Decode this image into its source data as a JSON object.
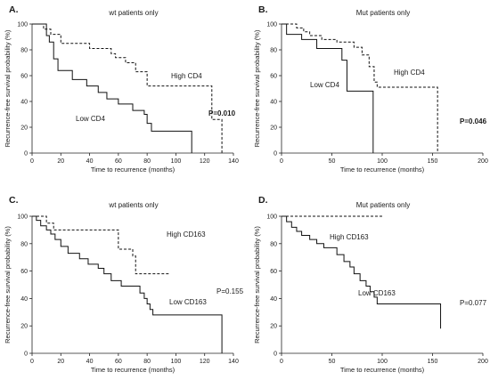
{
  "chart_data": [
    {
      "type": "line",
      "panel": "A.",
      "title": "wt patients only",
      "xlabel": "Time to recurrence (months)",
      "ylabel": "Recurrence-free survival probability (%)",
      "xlim": [
        0,
        140
      ],
      "ylim": [
        0,
        100
      ],
      "xticks": [
        0,
        20,
        40,
        60,
        80,
        100,
        120,
        140
      ],
      "yticks": [
        0,
        20,
        40,
        60,
        80,
        100
      ],
      "p_value": "P=0.010",
      "p_bold": true,
      "series": [
        {
          "name": "High CD4",
          "style": "dashed",
          "x": [
            0,
            8,
            13,
            20,
            36,
            40,
            55,
            58,
            65,
            72,
            80,
            90,
            125,
            132,
            132
          ],
          "y": [
            100,
            96,
            92,
            85,
            85,
            81,
            77,
            74,
            70,
            63,
            52,
            52,
            26,
            26,
            0
          ]
        },
        {
          "name": "Low CD4",
          "style": "solid",
          "x": [
            0,
            6,
            10,
            12,
            15,
            18,
            28,
            38,
            46,
            52,
            60,
            70,
            78,
            80,
            83,
            111,
            111
          ],
          "y": [
            100,
            100,
            91,
            86,
            73,
            64,
            57,
            52,
            47,
            42,
            38,
            33,
            30,
            23,
            17,
            17,
            0
          ]
        }
      ]
    },
    {
      "type": "line",
      "panel": "B.",
      "title": "Mut patients only",
      "xlabel": "Time to recurrence (months)",
      "ylabel": "Recurrence-free survival probability (%)",
      "xlim": [
        0,
        200
      ],
      "ylim": [
        0,
        100
      ],
      "xticks": [
        0,
        50,
        100,
        150,
        200
      ],
      "yticks": [
        0,
        20,
        40,
        60,
        80,
        100
      ],
      "p_value": "P=0.046",
      "p_bold": true,
      "series": [
        {
          "name": "High CD4",
          "style": "dashed",
          "x": [
            0,
            15,
            22,
            28,
            40,
            55,
            72,
            80,
            87,
            92,
            95,
            155,
            155
          ],
          "y": [
            100,
            97,
            94,
            91,
            88,
            86,
            82,
            76,
            67,
            55,
            51,
            51,
            0
          ]
        },
        {
          "name": "Low CD4",
          "style": "solid",
          "x": [
            0,
            5,
            20,
            35,
            60,
            65,
            91,
            91
          ],
          "y": [
            100,
            92,
            88,
            81,
            72,
            48,
            48,
            0
          ]
        }
      ]
    },
    {
      "type": "line",
      "panel": "C.",
      "title": "wt patients only",
      "xlabel": "Time to recurrence (months)",
      "ylabel": "Recurrence-free survival probability (%)",
      "xlim": [
        0,
        140
      ],
      "ylim": [
        0,
        100
      ],
      "xticks": [
        0,
        20,
        40,
        60,
        80,
        100,
        120,
        140
      ],
      "yticks": [
        0,
        20,
        40,
        60,
        80,
        100
      ],
      "p_value": "P=0.155",
      "p_bold": false,
      "series": [
        {
          "name": "High CD163",
          "style": "dashed",
          "x": [
            0,
            10,
            15,
            55,
            60,
            70,
            72,
            95
          ],
          "y": [
            100,
            95,
            90,
            90,
            76,
            71,
            58,
            58
          ]
        },
        {
          "name": "Low CD163",
          "style": "solid",
          "x": [
            0,
            3,
            6,
            10,
            13,
            16,
            20,
            25,
            33,
            39,
            46,
            50,
            55,
            62,
            70,
            75,
            78,
            80,
            82,
            84,
            128,
            132,
            132
          ],
          "y": [
            100,
            97,
            93,
            90,
            87,
            83,
            78,
            73,
            69,
            65,
            62,
            58,
            53,
            49,
            49,
            44,
            40,
            36,
            32,
            28,
            28,
            14,
            0
          ]
        }
      ]
    },
    {
      "type": "line",
      "panel": "D.",
      "title": "Mut patients only",
      "xlabel": "Time to recurrence (months)",
      "ylabel": "Recurrence-free survival probability (%)",
      "xlim": [
        0,
        200
      ],
      "ylim": [
        0,
        100
      ],
      "xticks": [
        0,
        50,
        100,
        150,
        200
      ],
      "yticks": [
        0,
        20,
        40,
        60,
        80,
        100
      ],
      "p_value": "P=0.077",
      "p_bold": false,
      "series": [
        {
          "name": "High CD163",
          "style": "dashed",
          "x": [
            0,
            100
          ],
          "y": [
            100,
            100
          ]
        },
        {
          "name": "Low CD163",
          "style": "solid",
          "x": [
            0,
            5,
            10,
            15,
            20,
            28,
            35,
            42,
            55,
            62,
            68,
            72,
            78,
            84,
            88,
            92,
            95,
            155,
            158
          ],
          "y": [
            100,
            96,
            92,
            89,
            86,
            83,
            80,
            77,
            72,
            67,
            63,
            58,
            53,
            49,
            45,
            41,
            36,
            36,
            18
          ]
        }
      ]
    }
  ]
}
